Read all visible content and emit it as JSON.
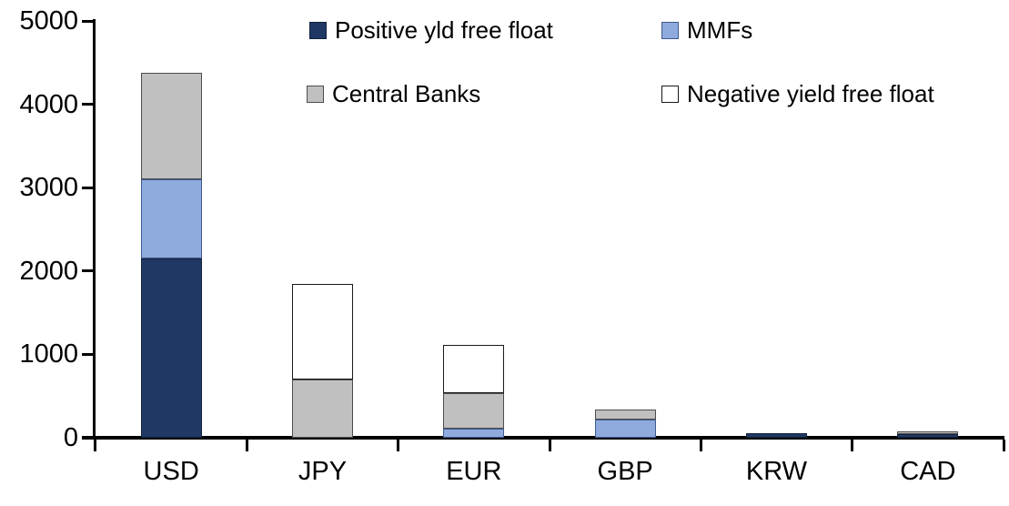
{
  "chart_data": {
    "type": "bar",
    "stacked": true,
    "title": "",
    "xlabel": "",
    "ylabel": "",
    "categories": [
      "USD",
      "JPY",
      "EUR",
      "GBP",
      "KRW",
      "CAD"
    ],
    "series": [
      {
        "name": "Positive yld free float",
        "color": "#1f3864",
        "border": "#14223c",
        "values": [
          2150,
          0,
          0,
          0,
          50,
          40
        ]
      },
      {
        "name": "MMFs",
        "color": "#8faadc",
        "border": "#3e5a8f",
        "values": [
          950,
          0,
          110,
          220,
          0,
          0
        ]
      },
      {
        "name": "Central Banks",
        "color": "#c0c0c0",
        "border": "#4d4d4d",
        "values": [
          1280,
          700,
          430,
          120,
          0,
          40
        ]
      },
      {
        "name": "Negative yield free float",
        "color": "#ffffff",
        "border": "#1a1a1a",
        "values": [
          0,
          1140,
          570,
          0,
          0,
          0
        ]
      }
    ],
    "totals": {
      "USD": 4380,
      "JPY": 1840,
      "EUR": 1110,
      "GBP": 340,
      "KRW": 50,
      "CAD": 80
    },
    "ylim": [
      0,
      5000
    ],
    "yticks": [
      0,
      1000,
      2000,
      3000,
      4000,
      5000
    ],
    "grid": false,
    "legend_position": "top",
    "legend_layout": "2x2"
  }
}
